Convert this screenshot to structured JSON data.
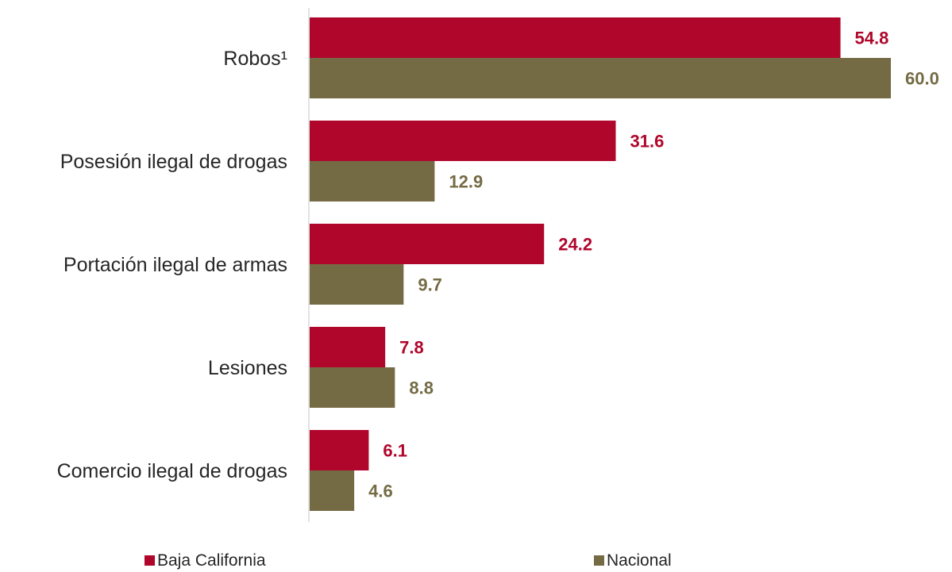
{
  "chart_data": {
    "type": "bar",
    "orientation": "horizontal",
    "categories": [
      "Robos¹",
      "Posesión ilegal de drogas",
      "Portación ilegal de armas",
      "Lesiones",
      "Comercio ilegal de drogas"
    ],
    "series": [
      {
        "name": "Baja California",
        "color": "#b0062c",
        "values": [
          54.8,
          31.6,
          24.2,
          7.8,
          6.1
        ],
        "labels": [
          "54.8",
          "31.6",
          "24.2",
          "7.8",
          "6.1"
        ]
      },
      {
        "name": "Nacional",
        "color": "#746b45",
        "values": [
          60.0,
          12.9,
          9.7,
          8.8,
          4.6
        ],
        "labels": [
          "60.0",
          "12.9",
          "9.7",
          "8.8",
          "4.6"
        ]
      }
    ],
    "title": "",
    "xlabel": "",
    "ylabel": "",
    "xlim": [
      0,
      66
    ],
    "grid": false,
    "axis_line": true,
    "legend_position": "bottom"
  }
}
